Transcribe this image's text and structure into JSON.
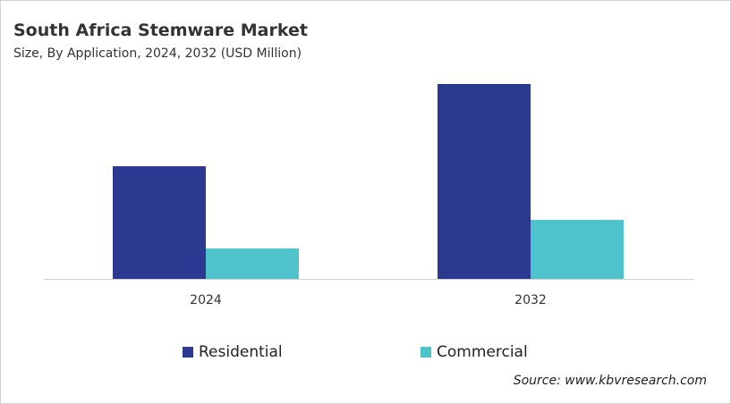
{
  "chart_data": {
    "type": "bar",
    "title": "South Africa Stemware Market",
    "subtitle": "Size, By Application, 2024, 2032 (USD Million)",
    "categories": [
      "2024",
      "2032"
    ],
    "series": [
      {
        "name": "Residential",
        "color": "#2b3990",
        "values": [
          126,
          218
        ]
      },
      {
        "name": "Commercial",
        "color": "#4fc3cc",
        "values": [
          34,
          66
        ]
      }
    ],
    "ylim": [
      0,
      230
    ],
    "xlabel": "",
    "ylabel": "",
    "grid": false,
    "legend": "bottom",
    "source": "Source: www.kbvresearch.com"
  }
}
